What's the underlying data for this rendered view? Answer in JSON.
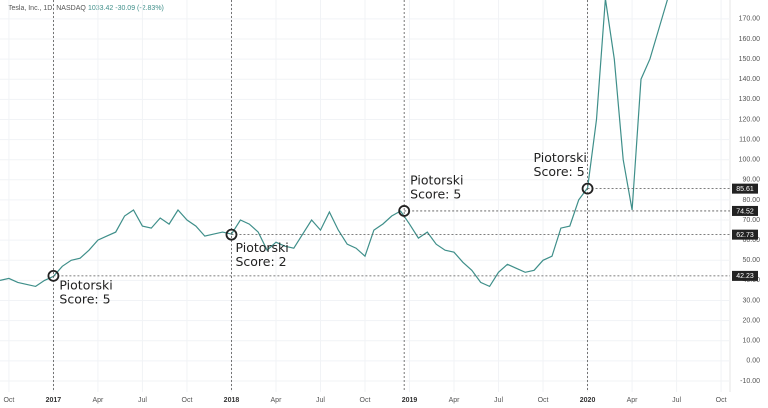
{
  "chart_data": {
    "type": "line",
    "header_title": "Tesla, Inc., 1D, NASDAQ",
    "header_quote": "1033.42 -30.09 (-2.83%)",
    "color": "#3f8f8a",
    "grid": true,
    "xlim": [
      2016.7,
      2020.8
    ],
    "ylim": [
      -15.5,
      179.4
    ],
    "xticks": [
      {
        "value": 2016.75,
        "label": "Oct"
      },
      2017,
      {
        "value": 2017.25,
        "label": "Apr"
      },
      {
        "value": 2017.5,
        "label": "Jul"
      },
      {
        "value": 2017.75,
        "label": "Oct"
      },
      2018,
      {
        "value": 2018.25,
        "label": "Apr"
      },
      {
        "value": 2018.5,
        "label": "Jul"
      },
      {
        "value": 2018.75,
        "label": "Oct"
      },
      2019,
      {
        "value": 2019.25,
        "label": "Apr"
      },
      {
        "value": 2019.5,
        "label": "Jul"
      },
      {
        "value": 2019.75,
        "label": "Oct"
      },
      2020,
      {
        "value": 2020.25,
        "label": "Apr"
      },
      {
        "value": 2020.5,
        "label": "Jul"
      },
      {
        "value": 2020.75,
        "label": "Oct"
      }
    ],
    "yticks": [
      {
        "value": 170,
        "label": "170.00"
      },
      {
        "value": 160,
        "label": "160.00"
      },
      {
        "value": 150,
        "label": "150.00"
      },
      {
        "value": 140,
        "label": "140.00"
      },
      {
        "value": 130,
        "label": "130.00"
      },
      {
        "value": 120,
        "label": "120.00"
      },
      {
        "value": 110,
        "label": "110.00"
      },
      {
        "value": 100,
        "label": "100.00"
      },
      {
        "value": 90,
        "label": "90.00"
      },
      {
        "value": 80,
        "label": "80.00"
      },
      {
        "value": 70,
        "label": "70.00"
      },
      {
        "value": 60,
        "label": "60.00"
      },
      {
        "value": 50,
        "label": "50.00"
      },
      {
        "value": 40,
        "label": "40.00"
      },
      {
        "value": 30,
        "label": "30.00"
      },
      {
        "value": 20,
        "label": "20.00"
      },
      {
        "value": 10,
        "label": "10.00"
      },
      {
        "value": 0,
        "label": "0.00"
      },
      {
        "value": -10,
        "label": "-10.00"
      }
    ],
    "x": [
      2016.7,
      2016.75,
      2016.8,
      2016.85,
      2016.9,
      2016.95,
      2017.0,
      2017.05,
      2017.1,
      2017.15,
      2017.2,
      2017.25,
      2017.3,
      2017.35,
      2017.4,
      2017.45,
      2017.5,
      2017.55,
      2017.6,
      2017.65,
      2017.7,
      2017.75,
      2017.8,
      2017.85,
      2017.9,
      2017.95,
      2018.0,
      2018.05,
      2018.1,
      2018.15,
      2018.2,
      2018.25,
      2018.3,
      2018.35,
      2018.4,
      2018.45,
      2018.5,
      2018.55,
      2018.6,
      2018.65,
      2018.7,
      2018.75,
      2018.8,
      2018.85,
      2018.9,
      2018.95,
      2019.0,
      2019.05,
      2019.1,
      2019.15,
      2019.2,
      2019.25,
      2019.3,
      2019.35,
      2019.4,
      2019.45,
      2019.5,
      2019.55,
      2019.6,
      2019.65,
      2019.7,
      2019.75,
      2019.8,
      2019.85,
      2019.9,
      2019.95,
      2020.0,
      2020.05,
      2020.1,
      2020.15,
      2020.2,
      2020.25,
      2020.3,
      2020.35,
      2020.4,
      2020.45
    ],
    "values": [
      40,
      41,
      39,
      38,
      37,
      40,
      42,
      47,
      50,
      51,
      55,
      60,
      62,
      64,
      72,
      75,
      67,
      66,
      71,
      68,
      75,
      70,
      67,
      62,
      63,
      64,
      63,
      70,
      68,
      64,
      55,
      59,
      57,
      56,
      63,
      70,
      65,
      74,
      65,
      58,
      56,
      52,
      65,
      68,
      72,
      74.5,
      68,
      61,
      64,
      58,
      55,
      54,
      49,
      45,
      39,
      37,
      44,
      48,
      46,
      44,
      45,
      50,
      52,
      66,
      67,
      80,
      86,
      120,
      180,
      150,
      100,
      75,
      140,
      150,
      165,
      180
    ],
    "annotations": [
      {
        "x": 2017.0,
        "value": 42.23,
        "lines": [
          "Piotorski",
          "Score: 5"
        ]
      },
      {
        "x": 2018.0,
        "value": 62.73,
        "lines": [
          "Piotorski",
          "Score: 2"
        ]
      },
      {
        "x": 2018.97,
        "value": 74.52,
        "lines": [
          "Piotorski",
          "Score: 5"
        ]
      },
      {
        "x": 2020.0,
        "value": 85.61,
        "lines": [
          "Piotorski",
          "Score: 5"
        ]
      }
    ]
  }
}
